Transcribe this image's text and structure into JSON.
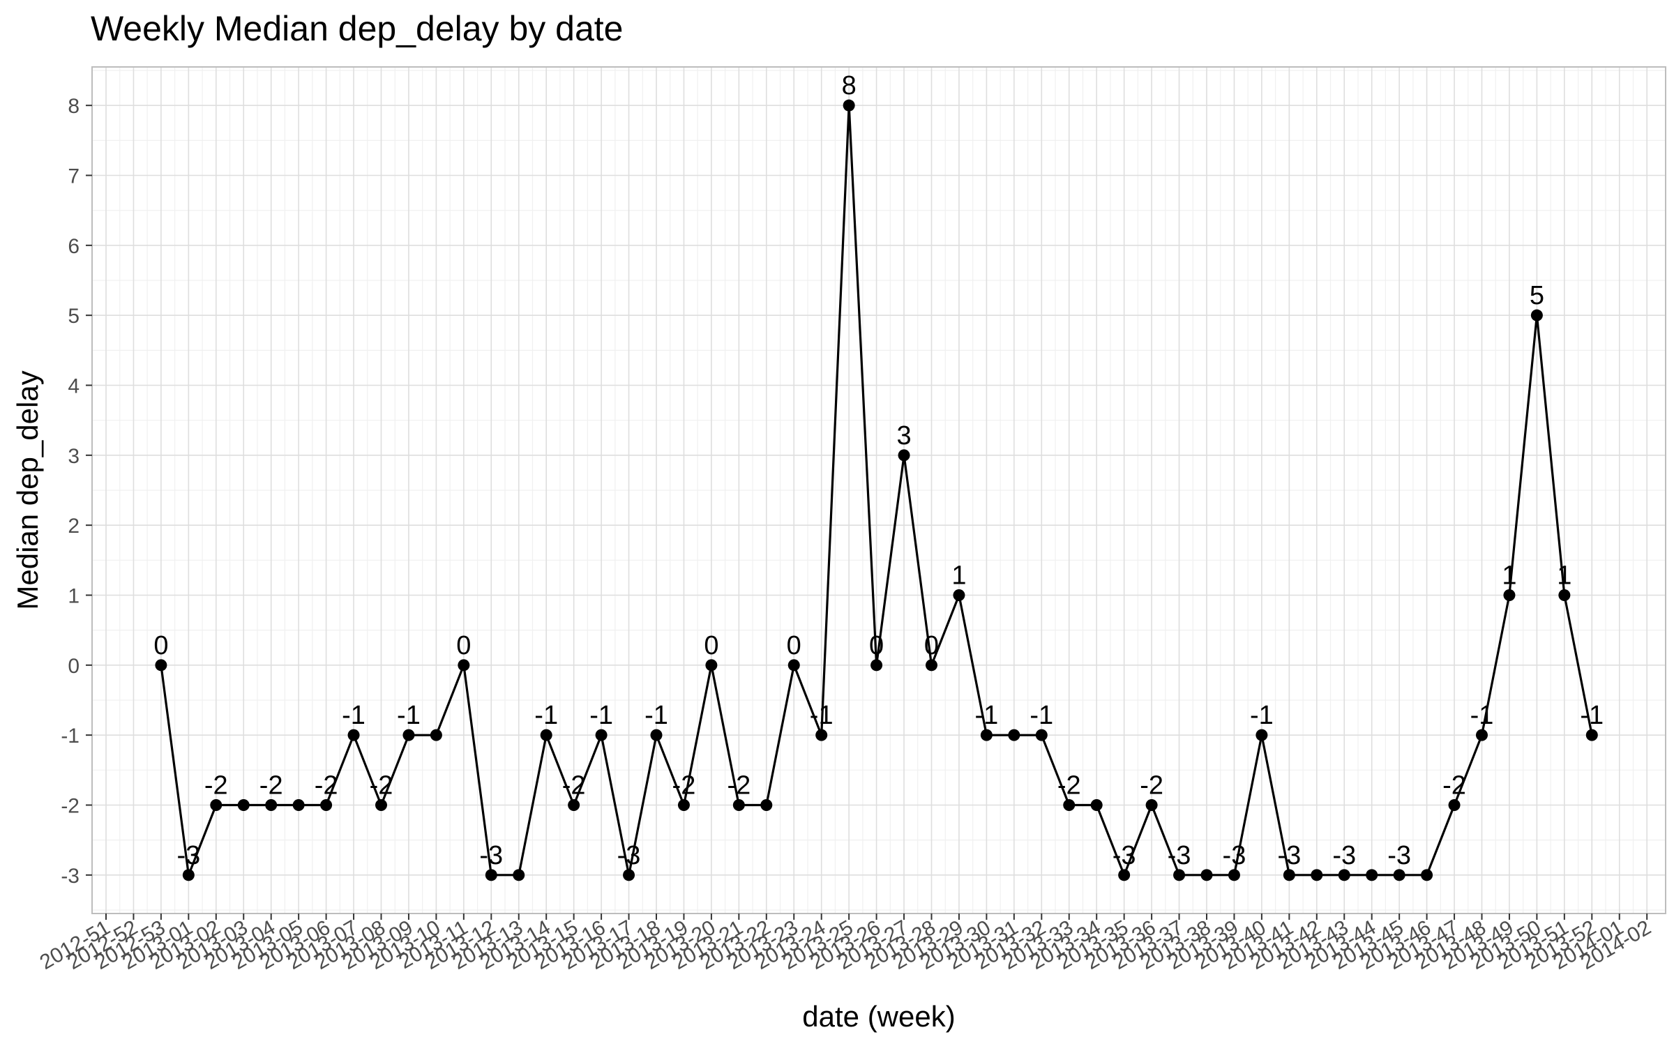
{
  "chart_data": {
    "type": "line",
    "title": "Weekly Median dep_delay by date",
    "xlabel": "date (week)",
    "ylabel": "Median dep_delay",
    "x_tick_labels": [
      "2012-51",
      "2012-52",
      "2012-53",
      "2013-01",
      "2013-02",
      "2013-03",
      "2013-04",
      "2013-05",
      "2013-06",
      "2013-07",
      "2013-08",
      "2013-09",
      "2013-10",
      "2013-11",
      "2013-12",
      "2013-13",
      "2013-14",
      "2013-15",
      "2013-16",
      "2013-17",
      "2013-18",
      "2013-19",
      "2013-20",
      "2013-21",
      "2013-22",
      "2013-23",
      "2013-24",
      "2013-25",
      "2013-26",
      "2013-27",
      "2013-28",
      "2013-29",
      "2013-30",
      "2013-31",
      "2013-32",
      "2013-33",
      "2013-34",
      "2013-35",
      "2013-36",
      "2013-37",
      "2013-38",
      "2013-39",
      "2013-40",
      "2013-41",
      "2013-42",
      "2013-43",
      "2013-44",
      "2013-45",
      "2013-46",
      "2013-47",
      "2013-48",
      "2013-49",
      "2013-50",
      "2013-51",
      "2013-52",
      "2014-01",
      "2014-02"
    ],
    "y_ticks": [
      -3,
      -2,
      -1,
      0,
      1,
      2,
      3,
      4,
      5,
      6,
      7,
      8
    ],
    "ylim": [
      -3.55,
      8.55
    ],
    "grid": true,
    "legend": "none",
    "series": [
      {
        "x": [
          "2012-53",
          "2013-01",
          "2013-02",
          "2013-03",
          "2013-04",
          "2013-05",
          "2013-06",
          "2013-07",
          "2013-08",
          "2013-09",
          "2013-10",
          "2013-11",
          "2013-12",
          "2013-13",
          "2013-14",
          "2013-15",
          "2013-16",
          "2013-17",
          "2013-18",
          "2013-19",
          "2013-20",
          "2013-21",
          "2013-22",
          "2013-23",
          "2013-24",
          "2013-25",
          "2013-26",
          "2013-27",
          "2013-28",
          "2013-29",
          "2013-30",
          "2013-31",
          "2013-32",
          "2013-33",
          "2013-34",
          "2013-35",
          "2013-36",
          "2013-37",
          "2013-38",
          "2013-39",
          "2013-40",
          "2013-41",
          "2013-42",
          "2013-43",
          "2013-44",
          "2013-45",
          "2013-46",
          "2013-47",
          "2013-48",
          "2013-49",
          "2013-50",
          "2013-51",
          "2013-52"
        ],
        "values": [
          0,
          -3,
          -2,
          -2,
          -2,
          -2,
          -2,
          -1,
          -2,
          -1,
          -1,
          0,
          -3,
          -3,
          -1,
          -2,
          -1,
          -3,
          -1,
          -2,
          0,
          -2,
          -2,
          0,
          -1,
          8,
          0,
          3,
          0,
          1,
          -1,
          -1,
          -1,
          -2,
          -2,
          -3,
          -2,
          -3,
          -3,
          -3,
          -1,
          -3,
          -3,
          -3,
          -3,
          -3,
          -3,
          -2,
          -1,
          1,
          5,
          1,
          -1
        ],
        "labels": [
          "0",
          "-3",
          "-2",
          "",
          "-2",
          "",
          "-2",
          "-1",
          "-2",
          "-1",
          "",
          "0",
          "-3",
          "",
          "-1",
          "-2",
          "-1",
          "-3",
          "-1",
          "-2",
          "0",
          "-2",
          "",
          "0",
          "-1",
          "8",
          "0",
          "3",
          "0",
          "1",
          "-1",
          "",
          "-1",
          "-2",
          "",
          "-3",
          "-2",
          "-3",
          "",
          "-3",
          "-1",
          "-3",
          "",
          "-3",
          "",
          "-3",
          "",
          "-2",
          "-1",
          "1",
          "5",
          "1",
          "-1"
        ],
        "color": "#000000"
      }
    ]
  }
}
